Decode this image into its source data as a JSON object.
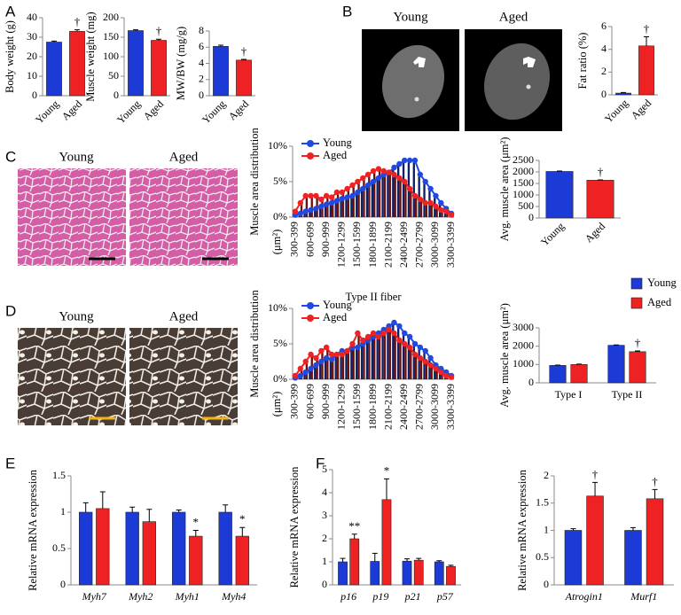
{
  "panel_labels": [
    "A",
    "B",
    "C",
    "D",
    "E",
    "F"
  ],
  "image_labels": {
    "B": [
      "Young",
      "Aged"
    ],
    "C": [
      "Young",
      "Aged"
    ],
    "D": [
      "Young",
      "Aged"
    ]
  },
  "chart_data": [
    {
      "type": "bar",
      "ylabel": "Body weight (g)",
      "categories": [
        "Young",
        "Aged"
      ],
      "values": [
        27.5,
        33
      ],
      "errors": [
        0.5,
        0.8
      ],
      "colors": [
        "#1c3ad6",
        "#ee2222"
      ],
      "annotations": [
        null,
        "†"
      ],
      "ylim": [
        0,
        40
      ],
      "yticks": [
        0,
        10,
        20,
        30,
        40
      ]
    },
    {
      "type": "bar",
      "ylabel": "Muscle weight (mg)",
      "categories": [
        "Young",
        "Aged"
      ],
      "values": [
        167,
        142
      ],
      "errors": [
        2,
        3
      ],
      "colors": [
        "#1c3ad6",
        "#ee2222"
      ],
      "annotations": [
        null,
        "†"
      ],
      "ylim": [
        0,
        200
      ],
      "yticks": [
        0,
        50,
        100,
        150,
        200
      ]
    },
    {
      "type": "bar",
      "ylabel": "MW/BW (mg/g)",
      "categories": [
        "Young",
        "Aged"
      ],
      "values": [
        6.1,
        4.4
      ],
      "errors": [
        0.15,
        0.1
      ],
      "colors": [
        "#1c3ad6",
        "#ee2222"
      ],
      "annotations": [
        null,
        "†"
      ],
      "ylim": [
        0,
        8
      ],
      "yticks": [
        0,
        2,
        4,
        6,
        8
      ]
    },
    {
      "type": "bar",
      "ylabel": "Fat ratio (%)",
      "categories": [
        "Young",
        "Aged"
      ],
      "values": [
        0.15,
        4.3
      ],
      "errors": [
        0.05,
        0.8
      ],
      "colors": [
        "#1c3ad6",
        "#ee2222"
      ],
      "annotations": [
        null,
        "†"
      ],
      "ylim": [
        0,
        6
      ],
      "yticks": [
        0,
        2,
        4,
        6
      ]
    },
    {
      "type": "line",
      "bars": true,
      "ylabel": "Muscle area distribution",
      "xlabel": "(μm²)",
      "categories": [
        "300-399",
        null,
        null,
        "600-699",
        null,
        null,
        "900-999",
        null,
        null,
        "1200-1299",
        null,
        null,
        "1500-1599",
        null,
        null,
        "1800-1899",
        null,
        null,
        "2100-2199",
        null,
        null,
        "2400-2499",
        null,
        null,
        "2700-2799",
        null,
        null,
        "3000-3099",
        null,
        null,
        "3300-3399"
      ],
      "series": [
        {
          "name": "Young",
          "color": "#1f49e0",
          "values": [
            0.3,
            0.5,
            0.8,
            1.0,
            1.2,
            1.5,
            1.8,
            2.0,
            2.3,
            2.6,
            2.8,
            3.0,
            3.5,
            4.0,
            4.5,
            5.0,
            5.5,
            6.0,
            6.3,
            7.0,
            7.5,
            8.0,
            8.0,
            8.0,
            6.0,
            5.0,
            4.0,
            3.0,
            2.0,
            1.2,
            0.5
          ]
        },
        {
          "name": "Aged",
          "color": "#ee2222",
          "values": [
            0.8,
            2.0,
            3.0,
            3.0,
            3.0,
            2.5,
            3.0,
            2.8,
            3.5,
            3.5,
            4.0,
            4.5,
            5.0,
            5.5,
            6.0,
            6.5,
            6.8,
            6.5,
            6.3,
            6.0,
            5.5,
            5.0,
            4.0,
            3.0,
            2.5,
            2.0,
            2.0,
            1.5,
            1.0,
            0.8,
            0.3
          ]
        }
      ],
      "ylim": [
        0,
        10
      ],
      "yticks": [
        {
          "value": 0,
          "label": "0%"
        },
        {
          "value": 5,
          "label": "5%"
        },
        {
          "value": 10,
          "label": "10%"
        }
      ],
      "legend": "top-left"
    },
    {
      "type": "bar",
      "ylabel": "Avg. muscle area (μm²)",
      "categories": [
        "Young",
        "Aged"
      ],
      "values": [
        2020,
        1640
      ],
      "errors": [
        20,
        15
      ],
      "colors": [
        "#1c3ad6",
        "#ee2222"
      ],
      "annotations": [
        null,
        "†"
      ],
      "ylim": [
        0,
        2500
      ],
      "yticks": [
        0,
        500,
        1000,
        1500,
        2000,
        2500
      ]
    },
    {
      "type": "line",
      "bars": true,
      "title": "Type II fiber",
      "ylabel": "Muscle area distribution",
      "xlabel": "(μm²)",
      "categories": [
        "300-399",
        null,
        null,
        "600-699",
        null,
        null,
        "900-999",
        null,
        null,
        "1200-1299",
        null,
        null,
        "1500-1599",
        null,
        null,
        "1800-1899",
        null,
        null,
        "2100-2199",
        null,
        null,
        "2400-2499",
        null,
        null,
        "2700-2799",
        null,
        null,
        "3000-3099",
        null,
        null,
        "3300-3399"
      ],
      "series": [
        {
          "name": "Young",
          "color": "#1f49e0",
          "values": [
            0.2,
            0.5,
            1.0,
            1.5,
            2.0,
            2.5,
            3.0,
            2.8,
            3.5,
            4.0,
            4.0,
            4.5,
            4.5,
            5.0,
            5.5,
            6.0,
            6.5,
            7.0,
            7.5,
            8.0,
            7.5,
            6.5,
            6.0,
            5.0,
            4.5,
            4.0,
            3.0,
            2.0,
            1.5,
            1.0,
            0.5
          ]
        },
        {
          "name": "Aged",
          "color": "#ee2222",
          "values": [
            0.5,
            1.5,
            2.5,
            3.5,
            3.0,
            4.0,
            4.5,
            3.5,
            3.5,
            3.5,
            4.0,
            5.0,
            6.5,
            5.5,
            6.0,
            6.5,
            6.0,
            6.5,
            7.0,
            6.5,
            5.5,
            5.0,
            4.5,
            3.5,
            3.0,
            2.5,
            2.0,
            1.5,
            1.0,
            0.5,
            0.3
          ]
        }
      ],
      "ylim": [
        0,
        10
      ],
      "yticks": [
        {
          "value": 0,
          "label": "0%"
        },
        {
          "value": 5,
          "label": "5%"
        },
        {
          "value": 10,
          "label": "10%"
        }
      ],
      "legend": "top-left"
    },
    {
      "type": "bar",
      "ylabel": "Avg. muscle area (μm²)",
      "categories": [
        "Type I",
        "Type II"
      ],
      "series": [
        {
          "name": "Young",
          "color": "#1c3ad6",
          "values": [
            950,
            2050
          ],
          "errors": [
            20,
            20
          ]
        },
        {
          "name": "Aged",
          "color": "#ee2222",
          "values": [
            1000,
            1700
          ],
          "errors": [
            20,
            40
          ],
          "annotations": [
            null,
            "†"
          ]
        }
      ],
      "ylim": [
        0,
        3000
      ],
      "yticks": [
        0,
        1000,
        2000,
        3000
      ],
      "legend": "top-right"
    },
    {
      "type": "bar",
      "ylabel": "Relative mRNA expression",
      "categories": [
        "Myh7",
        "Myh2",
        "Myh1",
        "Myh4"
      ],
      "series": [
        {
          "color": "#1c3ad6",
          "values": [
            1,
            1,
            1,
            1
          ],
          "errors": [
            0.13,
            0.07,
            0.03,
            0.1
          ]
        },
        {
          "color": "#ee2222",
          "values": [
            1.05,
            0.87,
            0.67,
            0.67
          ],
          "errors": [
            0.23,
            0.17,
            0.08,
            0.12
          ],
          "annotations": [
            null,
            null,
            "*",
            "*"
          ]
        }
      ],
      "ylim": [
        0,
        1.5
      ],
      "yticks": [
        0,
        0.5,
        1,
        1.5
      ]
    },
    {
      "type": "bar",
      "ylabel": "Relative mRNA expression",
      "categories": [
        "p16",
        "p19",
        "p21",
        "p57"
      ],
      "series": [
        {
          "color": "#1c3ad6",
          "values": [
            1,
            1.02,
            1.03,
            1
          ],
          "errors": [
            0.15,
            0.35,
            0.1,
            0.05
          ]
        },
        {
          "color": "#ee2222",
          "values": [
            2.0,
            3.7,
            1.07,
            0.8
          ],
          "errors": [
            0.2,
            0.9,
            0.08,
            0.05
          ],
          "annotations": [
            "**",
            "*",
            null,
            null
          ]
        }
      ],
      "ylim": [
        0,
        5
      ],
      "yticks": [
        0,
        1,
        2,
        3,
        4,
        5
      ]
    },
    {
      "type": "bar",
      "ylabel": "Relative mRNA expression",
      "categories": [
        "Atrogin1",
        "Murf1"
      ],
      "series": [
        {
          "color": "#1c3ad6",
          "values": [
            1,
            1
          ],
          "errors": [
            0.03,
            0.05
          ]
        },
        {
          "color": "#ee2222",
          "values": [
            1.63,
            1.58
          ],
          "errors": [
            0.25,
            0.17
          ],
          "annotations": [
            "†",
            "†"
          ]
        }
      ],
      "ylim": [
        0,
        2
      ],
      "yticks": [
        0,
        0.5,
        1,
        1.5,
        2
      ]
    }
  ]
}
